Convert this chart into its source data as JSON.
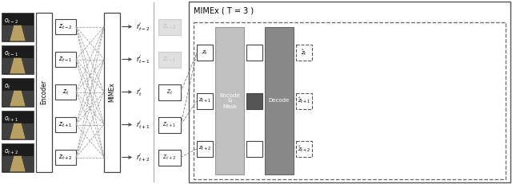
{
  "bg_color": "#ffffff",
  "box_edge": "#444444",
  "dashed_color": "#888888",
  "title": "MIMEx ( T = 3 )",
  "encoder_label": "Encoder",
  "mimex_label": "MIMEx",
  "encode_mask_label": "Encode\n&\nMask",
  "decode_label": "Decode",
  "z_labels_sub": [
    "t-2",
    "t-1",
    "t",
    "t+1",
    "t+2"
  ],
  "r_labels_sub": [
    "t-2",
    "t-1",
    "t",
    "t+1",
    "t+2"
  ],
  "o_labels_sub": [
    "t-2",
    "t-1",
    "t",
    "t+1",
    "t+2"
  ],
  "zhat_labels": [
    "\\hat{z}_t",
    "\\hat{z}_{t+1}",
    "\\hat{z}_{t+2}"
  ],
  "r_final_label": "r^i_{t+2}",
  "img_colors_top": [
    "#1a1a2e",
    "#2a2010",
    "#1a1a1a"
  ],
  "img_road_color": "#c8b878",
  "img_dark_color": "#111111"
}
